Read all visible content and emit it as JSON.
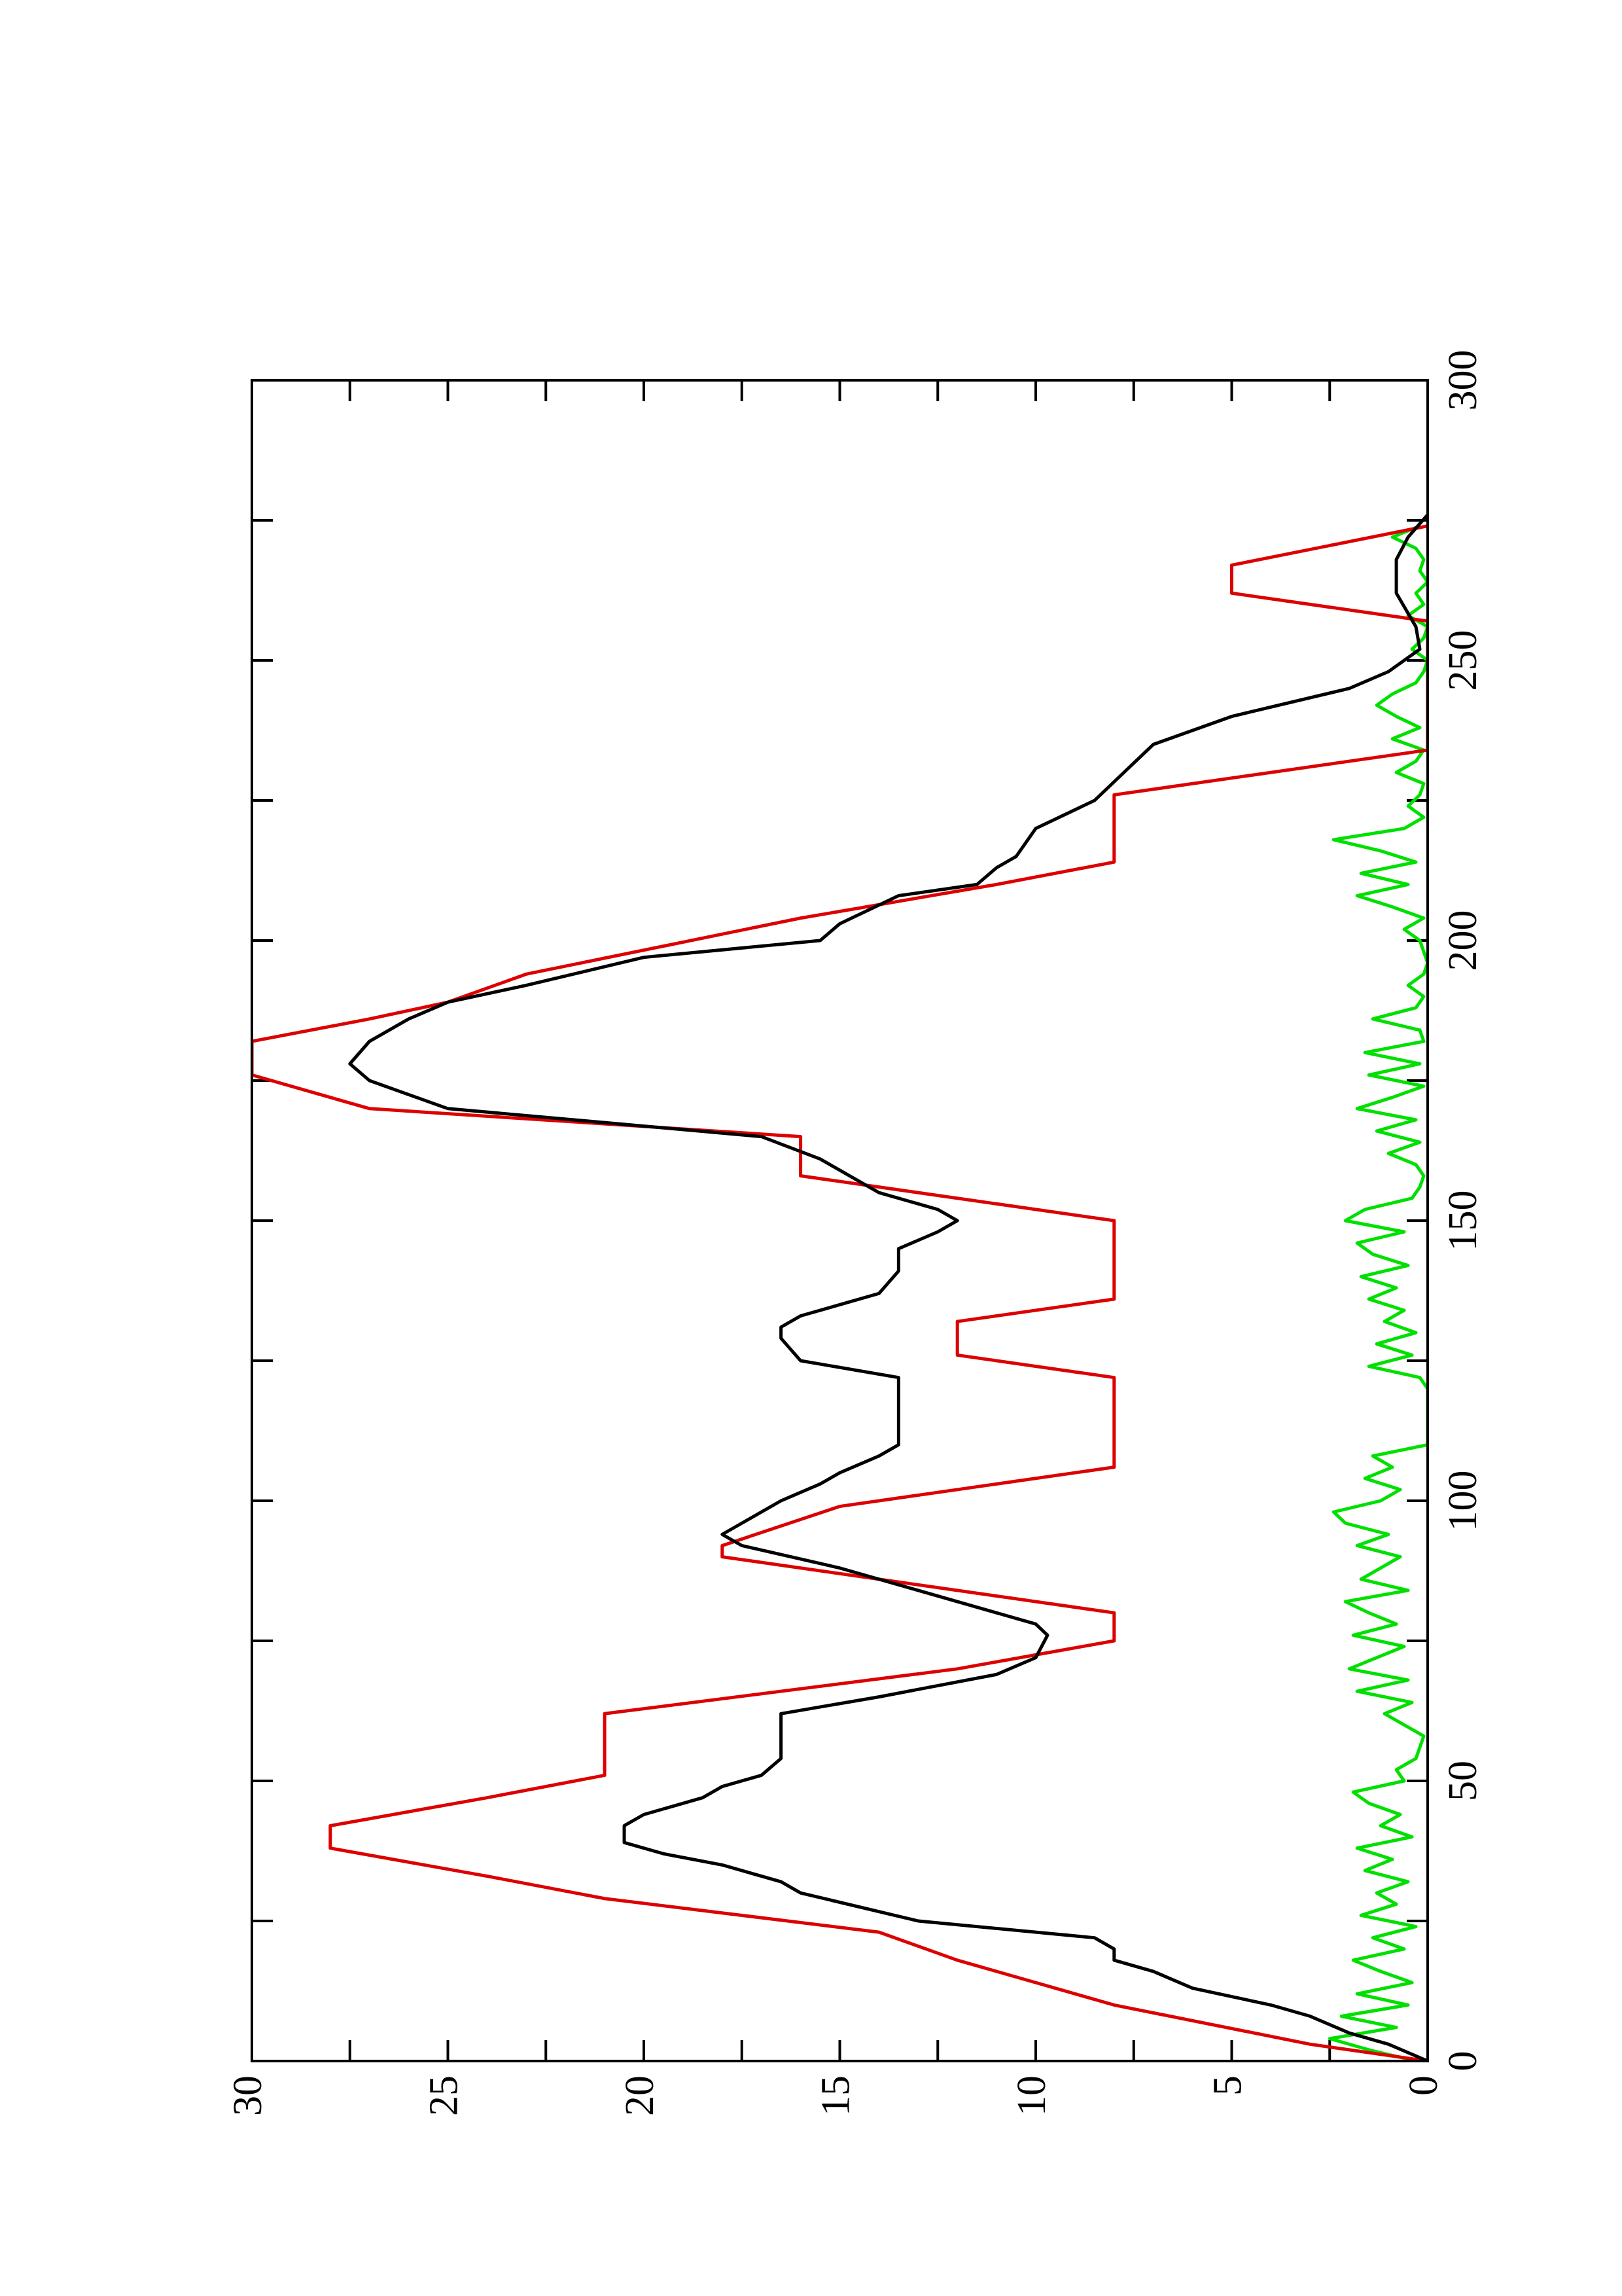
{
  "chart_data": {
    "type": "line",
    "xlim": [
      0,
      300
    ],
    "xticks": [
      0,
      50,
      100,
      150,
      200,
      250,
      300
    ],
    "xminorticks": [
      25,
      75,
      125,
      175,
      225,
      275
    ],
    "ylim": [
      0,
      30
    ],
    "yticks": [
      0,
      5,
      10,
      15,
      20,
      25,
      30
    ],
    "yminorticks": [
      2.5,
      7.5,
      12.5,
      17.5,
      22.5,
      27.5
    ],
    "series": [
      {
        "color": "#00e000",
        "x": [
          0,
          2,
          4,
          6,
          8,
          10,
          12,
          14,
          16,
          18,
          20,
          22,
          24,
          26,
          28,
          30,
          32,
          34,
          36,
          38,
          40,
          42,
          44,
          46,
          48,
          50,
          52,
          54,
          56,
          58,
          60,
          62,
          64,
          66,
          68,
          70,
          72,
          74,
          76,
          78,
          80,
          82,
          84,
          86,
          88,
          90,
          92,
          94,
          96,
          98,
          100,
          102,
          104,
          106,
          108,
          110,
          112,
          114,
          116,
          118,
          120,
          122,
          124,
          126,
          128,
          130,
          132,
          134,
          136,
          138,
          140,
          142,
          144,
          146,
          148,
          150,
          152,
          154,
          156,
          158,
          160,
          162,
          164,
          166,
          168,
          170,
          172,
          174,
          176,
          178,
          180,
          182,
          184,
          186,
          188,
          190,
          192,
          194,
          196,
          198,
          200,
          202,
          204,
          206,
          208,
          210,
          212,
          214,
          216,
          218,
          220,
          222,
          224,
          226,
          228,
          230,
          232,
          234,
          236,
          238,
          240,
          242,
          244,
          246,
          248,
          250,
          252,
          254,
          256,
          258,
          260,
          262,
          264,
          266,
          268,
          270,
          272,
          274
        ],
        "values": [
          0.3,
          1.5,
          2.5,
          0.8,
          2.2,
          0.5,
          1.8,
          0.4,
          1.2,
          1.9,
          0.6,
          1.4,
          0.3,
          1.7,
          0.8,
          1.3,
          0.5,
          1.6,
          0.9,
          1.8,
          0.4,
          1.2,
          0.7,
          1.5,
          1.9,
          0.6,
          0.8,
          0.3,
          0.2,
          0.1,
          0.6,
          1.1,
          0.4,
          1.8,
          0.5,
          2.0,
          1.3,
          0.6,
          1.9,
          0.8,
          1.5,
          2.1,
          0.5,
          1.7,
          1.2,
          0.7,
          1.8,
          1.0,
          2.1,
          2.4,
          1.2,
          0.7,
          1.6,
          0.9,
          1.4,
          0,
          0,
          0,
          0,
          0,
          0,
          0.2,
          1.5,
          0.4,
          1.3,
          0.3,
          1.1,
          0.6,
          1.5,
          0.8,
          1.7,
          0.5,
          1.4,
          1.8,
          0.6,
          2.1,
          1.6,
          0.4,
          0.2,
          0.1,
          0.3,
          1.0,
          0.2,
          1.3,
          0.3,
          1.8,
          0.9,
          0.1,
          1.5,
          0.2,
          1.6,
          0.1,
          0.2,
          1.4,
          0.3,
          0.1,
          0.5,
          0.1,
          0,
          0.1,
          0.2,
          0.6,
          0.1,
          0.9,
          1.8,
          0.5,
          1.7,
          0.3,
          1.2,
          2.4,
          0.6,
          0.1,
          0.5,
          0.2,
          0.1,
          0.8,
          0.3,
          0.1,
          0.9,
          0.2,
          0.8,
          1.3,
          0.9,
          0.3,
          0.1,
          0,
          0.4,
          0.1,
          0,
          0.5,
          0.1,
          0.3,
          0,
          0.2,
          0.1,
          0.3,
          0.9,
          0.2
        ]
      },
      {
        "color": "#dd0000",
        "x": [
          0,
          3,
          10,
          18,
          23,
          29,
          33,
          38,
          42,
          47,
          51,
          62,
          70,
          75,
          80,
          83,
          90,
          92,
          99,
          103,
          106,
          122,
          126,
          132,
          136,
          150,
          158,
          165,
          170,
          176,
          182,
          186,
          189,
          194,
          204,
          210,
          214,
          226,
          234,
          257,
          262,
          267,
          274
        ],
        "values": [
          0,
          3,
          8,
          12,
          14,
          21,
          24,
          28,
          28,
          24,
          21,
          21,
          12,
          8,
          8,
          11,
          18,
          18,
          15,
          11,
          8,
          8,
          12,
          12,
          8,
          8,
          16,
          16,
          27,
          30,
          30,
          27,
          25,
          23,
          16,
          11,
          8,
          8,
          0,
          0,
          5,
          5,
          0
        ]
      },
      {
        "color": "#000000",
        "x": [
          0,
          3,
          5,
          8,
          10,
          13,
          16,
          18,
          20,
          22,
          25,
          30,
          32,
          35,
          37,
          39,
          42,
          44,
          47,
          49,
          51,
          54,
          58,
          62,
          65,
          69,
          72,
          76,
          78,
          82,
          88,
          92,
          94,
          96,
          100,
          103,
          105,
          108,
          110,
          115,
          122,
          125,
          129,
          131,
          133,
          137,
          141,
          145,
          148,
          150,
          152,
          155,
          159,
          161,
          165,
          170,
          175,
          178,
          182,
          186,
          189,
          192,
          197,
          200,
          203,
          208,
          210,
          213,
          215,
          220,
          225,
          235,
          240,
          245,
          248,
          252,
          256,
          262,
          268,
          272,
          276
        ],
        "values": [
          0,
          1,
          2,
          3,
          4,
          6,
          7,
          8,
          8,
          8.5,
          13,
          16,
          16.5,
          18,
          19.5,
          20.5,
          20.5,
          20,
          18.5,
          18,
          17,
          16.5,
          16.5,
          16.5,
          14,
          11,
          10,
          9.7,
          10,
          12,
          15,
          17.5,
          18,
          17.5,
          16.5,
          15.5,
          15,
          14,
          13.5,
          13.5,
          13.5,
          16,
          16.5,
          16.5,
          16,
          14,
          13.5,
          13.5,
          12.5,
          12,
          12.5,
          14,
          15,
          15.5,
          17,
          25,
          27,
          27.5,
          27,
          26,
          25,
          23,
          20,
          15.5,
          15,
          13.5,
          11.5,
          11,
          10.5,
          10,
          8.5,
          7,
          5,
          2,
          1,
          0.2,
          0.3,
          0.8,
          0.8,
          0.5,
          0
        ]
      }
    ]
  }
}
